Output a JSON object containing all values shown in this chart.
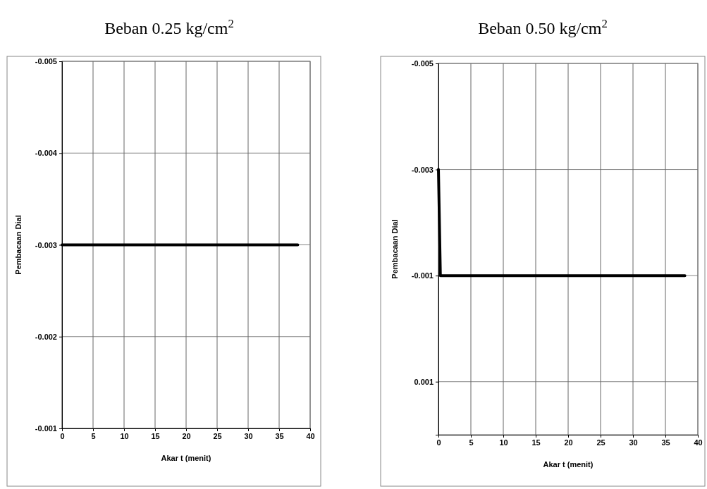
{
  "chart_data": [
    {
      "type": "line",
      "title": "Beban 0.25 kg/cm$^{2}$",
      "xlabel": "Akar t (menit)",
      "ylabel": "Pembacaan Dial",
      "xlim": [
        0,
        40
      ],
      "xticks": [
        0,
        5,
        10,
        15,
        20,
        25,
        30,
        35,
        40
      ],
      "ylim": [
        -0.001,
        -0.005
      ],
      "yticks": [
        -0.001,
        -0.002,
        -0.003,
        -0.004,
        -0.005
      ],
      "grid": true,
      "marker": "none",
      "series": [
        {
          "color": "#000000",
          "x": [
            0,
            38
          ],
          "values": [
            -0.003,
            -0.003
          ]
        }
      ]
    },
    {
      "type": "line",
      "title": "Beban 0.50 kg/cm$^{2}$",
      "xlabel": "Akar t (menit)",
      "ylabel": "Pembacaan Dial",
      "xlim": [
        0,
        40
      ],
      "xticks": [
        0,
        5,
        10,
        15,
        20,
        25,
        30,
        35,
        40
      ],
      "ylim": [
        0.002,
        -0.005
      ],
      "yticks": [
        0.001,
        -0.001,
        -0.003,
        -0.005
      ],
      "grid": true,
      "marker": "none",
      "series": [
        {
          "color": "#000000",
          "x": [
            0,
            0.3,
            38
          ],
          "values": [
            -0.003,
            -0.001,
            -0.001
          ]
        }
      ]
    }
  ]
}
